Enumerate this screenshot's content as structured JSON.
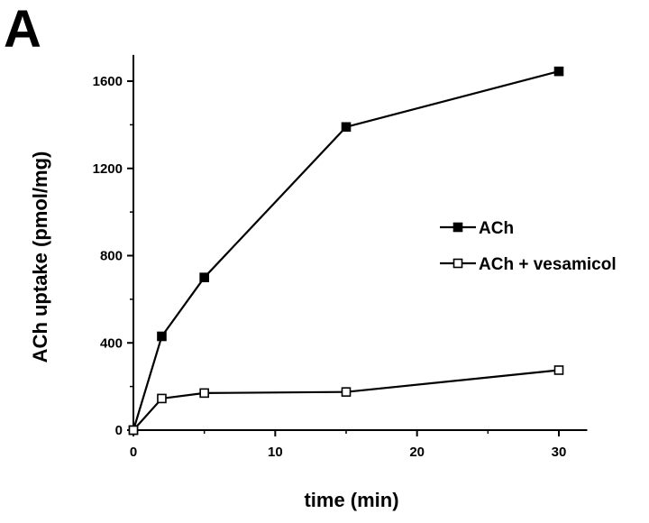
{
  "panel_label": "A",
  "chart_data": {
    "type": "line",
    "xlabel": "time (min)",
    "ylabel": "ACh uptake (pmol/mg)",
    "xlim": [
      0,
      32
    ],
    "ylim": [
      0,
      1700
    ],
    "xticks": [
      0,
      10,
      20,
      30
    ],
    "yticks": [
      0,
      400,
      800,
      1200,
      1600
    ],
    "grid": false,
    "legend_position": "right",
    "series": [
      {
        "name": "ACh",
        "marker": "filled-square",
        "color": "#000000",
        "x": [
          0,
          2,
          5,
          15,
          30
        ],
        "y": [
          0,
          430,
          700,
          1390,
          1645
        ]
      },
      {
        "name": "ACh + vesamicol",
        "marker": "open-square",
        "color": "#000000",
        "x": [
          0,
          2,
          5,
          15,
          30
        ],
        "y": [
          0,
          145,
          170,
          175,
          275
        ]
      }
    ]
  }
}
